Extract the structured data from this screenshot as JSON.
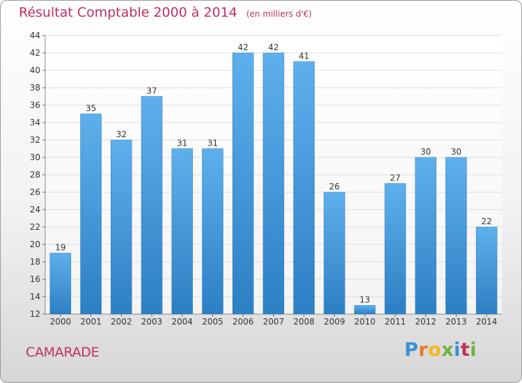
{
  "header": {
    "title": "Résultat Comptable 2000 à 2014",
    "unit": "(en milliers d'€)"
  },
  "footer": {
    "commune": "CAMARADE",
    "brand": "Proxiti"
  },
  "colors": {
    "bar_light": "#5eb0ec",
    "bar_dark": "#2d7fc4",
    "title": "#c0305a",
    "grid": "#dcdcdc"
  },
  "chart_data": {
    "type": "bar",
    "categories": [
      "2000",
      "2001",
      "2002",
      "2003",
      "2004",
      "2005",
      "2006",
      "2007",
      "2008",
      "2009",
      "2010",
      "2011",
      "2012",
      "2013",
      "2014"
    ],
    "values": [
      19,
      35,
      32,
      37,
      31,
      31,
      42,
      42,
      41,
      26,
      13,
      27,
      30,
      30,
      22
    ],
    "data_labels": [
      "19",
      "35",
      "32",
      "37",
      "31",
      "31",
      "42",
      "42",
      "41",
      "26",
      "13",
      "27",
      "30",
      "30",
      "22"
    ],
    "ylim": [
      12,
      44
    ],
    "yticks": [
      "12",
      "14",
      "16",
      "18",
      "20",
      "22",
      "24",
      "26",
      "28",
      "30",
      "32",
      "34",
      "36",
      "38",
      "40",
      "42",
      "44"
    ],
    "grid": true,
    "legend": "none"
  }
}
